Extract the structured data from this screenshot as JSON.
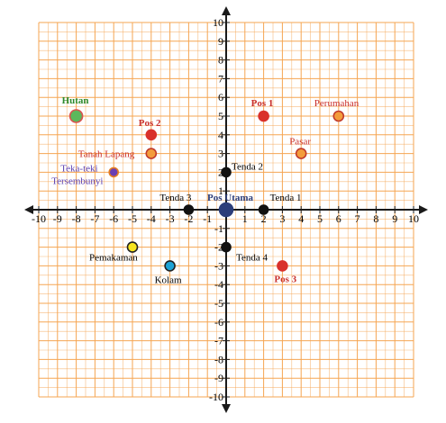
{
  "chart_data": {
    "type": "scatter",
    "xlim": [
      -10,
      10
    ],
    "ylim": [
      -10,
      10
    ],
    "x_ticks": [
      "-10",
      "-9",
      "-8",
      "-7",
      "-6",
      "-5",
      "-4",
      "-3",
      "-2",
      "-1",
      "1",
      "2",
      "3",
      "4",
      "5",
      "6",
      "7",
      "8",
      "9",
      "10"
    ],
    "y_ticks": [
      "10",
      "9",
      "8",
      "7",
      "6",
      "5",
      "4",
      "3",
      "2",
      "1",
      "-1",
      "-2",
      "-3",
      "-4",
      "-5",
      "-6",
      "-7",
      "-8",
      "-9",
      "-10"
    ],
    "grid": true,
    "grid_color": "#f5a552",
    "axis_color": "#1a1a1a",
    "points": [
      {
        "label": "Hutan",
        "x": -8,
        "y": 5,
        "fill": "#5cb85c",
        "stroke": "#d9534f",
        "text_color": "#2e8b2e",
        "bold": true
      },
      {
        "label": "Pos 2",
        "x": -4,
        "y": 4,
        "fill": "#d9312c",
        "stroke": "#d9312c",
        "text_color": "#c9302c",
        "bold": true
      },
      {
        "label": "Tanah Lapang",
        "x": -4,
        "y": 3,
        "fill": "#f39c3c",
        "stroke": "#c0392b",
        "text_color": "#c9302c",
        "bold": false
      },
      {
        "label": "Teka-teki Tersembunyi",
        "x": -6,
        "y": 2,
        "fill": "#6a3fb5",
        "stroke": "#e67e22",
        "text_color": "#5b3fb0",
        "bold": false
      },
      {
        "label": "Pos 1",
        "x": 2,
        "y": 5,
        "fill": "#d9312c",
        "stroke": "#d9312c",
        "text_color": "#c9302c",
        "bold": true
      },
      {
        "label": "Perumahan",
        "x": 6,
        "y": 5,
        "fill": "#f39c3c",
        "stroke": "#c0392b",
        "text_color": "#c9302c",
        "bold": false
      },
      {
        "label": "Pasar",
        "x": 4,
        "y": 3,
        "fill": "#f39c3c",
        "stroke": "#c0392b",
        "text_color": "#c9302c",
        "bold": false
      },
      {
        "label": "Tenda 2",
        "x": 0,
        "y": 2,
        "fill": "#111111",
        "stroke": "#111111",
        "text_color": "#000000",
        "bold": false
      },
      {
        "label": "Tenda 3",
        "x": -2,
        "y": 0,
        "fill": "#111111",
        "stroke": "#111111",
        "text_color": "#000000",
        "bold": false
      },
      {
        "label": "Pos Utama",
        "x": 0,
        "y": 0,
        "fill": "#2c3e7a",
        "stroke": "#2c3e7a",
        "text_color": "#2c3e7a",
        "bold": true
      },
      {
        "label": "Tenda 1",
        "x": 2,
        "y": 0,
        "fill": "#111111",
        "stroke": "#111111",
        "text_color": "#000000",
        "bold": false
      },
      {
        "label": "Tenda 4",
        "x": 0,
        "y": -2,
        "fill": "#111111",
        "stroke": "#111111",
        "text_color": "#000000",
        "bold": false
      },
      {
        "label": "Pemakaman",
        "x": -5,
        "y": -2,
        "fill": "#f7e51f",
        "stroke": "#222222",
        "text_color": "#000000",
        "bold": false
      },
      {
        "label": "Kolam",
        "x": -3,
        "y": -3,
        "fill": "#1ea3d6",
        "stroke": "#222222",
        "text_color": "#000000",
        "bold": false
      },
      {
        "label": "Pos 3",
        "x": 3,
        "y": -3,
        "fill": "#d9312c",
        "stroke": "#d9312c",
        "text_color": "#c9302c",
        "bold": true
      }
    ]
  }
}
